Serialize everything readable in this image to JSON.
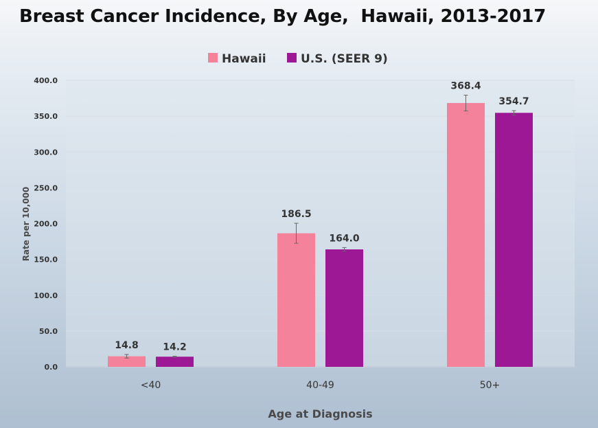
{
  "title": "Breast Cancer Incidence, By Age,  Hawaii, 2013-2017",
  "colors": {
    "hawaii": "#f3829a",
    "us": "#9c1894",
    "grid": "#d7dee6",
    "error": "#666666"
  },
  "chart_data": {
    "type": "bar",
    "title": "Breast Cancer Incidence, By Age,  Hawaii, 2013-2017",
    "xlabel": "Age at Diagnosis",
    "ylabel": "Rate per 10,000",
    "ylim": [
      0,
      400
    ],
    "yticks": [
      "0.0",
      "50.0",
      "100.0",
      "150.0",
      "200.0",
      "250.0",
      "300.0",
      "350.0",
      "400.0"
    ],
    "categories": [
      "<40",
      "40-49",
      "50+"
    ],
    "legend_position": "top-center",
    "grid": true,
    "series": [
      {
        "name": "Hawaii",
        "values": [
          14.8,
          186.5,
          368.4
        ],
        "labels": [
          "14.8",
          "186.5",
          "368.4"
        ],
        "error": [
          2.5,
          14.0,
          11.0
        ]
      },
      {
        "name": "U.S. (SEER 9)",
        "values": [
          14.2,
          164.0,
          354.7
        ],
        "labels": [
          "14.2",
          "164.0",
          "354.7"
        ],
        "error": [
          0.6,
          2.5,
          3.0
        ]
      }
    ]
  }
}
